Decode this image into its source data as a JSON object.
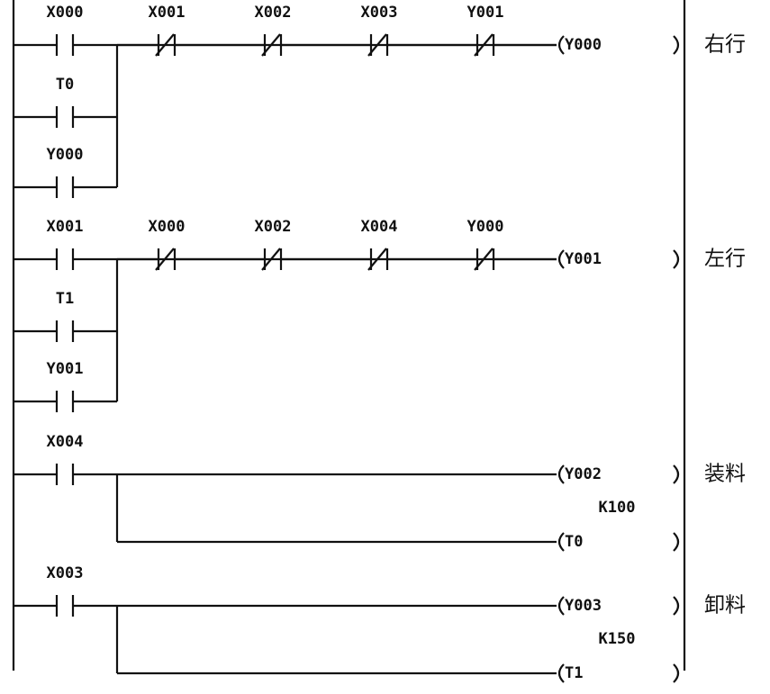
{
  "rungs": [
    {
      "contact": "X000",
      "series": [
        "X001",
        "X002",
        "X003",
        "Y001"
      ],
      "parallel": [
        "T0",
        "Y000"
      ],
      "coils": [
        {
          "label": "Y000"
        }
      ],
      "comment": "右行"
    },
    {
      "contact": "X001",
      "series": [
        "X000",
        "X002",
        "X004",
        "Y000"
      ],
      "parallel": [
        "T1",
        "Y001"
      ],
      "coils": [
        {
          "label": "Y001"
        }
      ],
      "comment": "左行"
    },
    {
      "contact": "X004",
      "coils": [
        {
          "label": "Y002"
        },
        {
          "label": "T0",
          "preset": "K100"
        }
      ],
      "comment": "装料"
    },
    {
      "contact": "X003",
      "coils": [
        {
          "label": "Y003"
        },
        {
          "label": "T1",
          "preset": "K150"
        }
      ],
      "comment": "卸料"
    }
  ]
}
